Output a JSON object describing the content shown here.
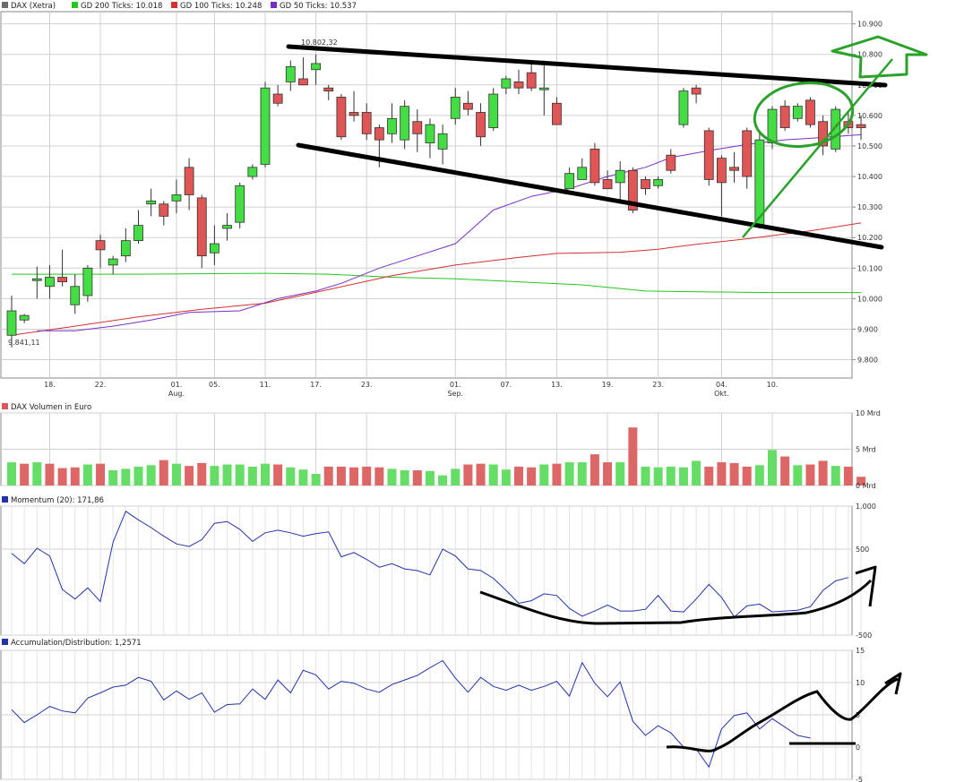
{
  "legend": [
    {
      "label": "DAX (Xetra)",
      "color": "#6b6b6b"
    },
    {
      "label": "GD 200 Ticks: 10.018",
      "color": "#22c722"
    },
    {
      "label": "GD 100 Ticks: 10.248",
      "color": "#d43030"
    },
    {
      "label": "GD 50 Ticks: 10.537",
      "color": "#7a2ec8"
    }
  ],
  "volume_title": "DAX Volumen in Euro",
  "momentum_title": "Momentum (20): 171,86",
  "ad_title": "Accumulation/Distribution: 1,2571",
  "annotations": {
    "high": "10.802,32",
    "low": "9.841,11"
  },
  "colors": {
    "up": "#44dd44",
    "down": "#e05555",
    "grid": "#d0d0d0",
    "sma200": "#22c722",
    "sma100": "#d43030",
    "sma50": "#7a2ec8",
    "indicator": "#2233aa",
    "trend": "#000000",
    "drawing": "#2aa22a"
  },
  "chart_data": [
    {
      "type": "candlestick",
      "ylim": [
        9740,
        10940
      ],
      "yticks": [
        "9.800",
        "9.900",
        "10.000",
        "10.100",
        "10.200",
        "10.300",
        "10.400",
        "10.500",
        "10.600",
        "10.700",
        "10.800",
        "10.900"
      ],
      "xticks": [
        {
          "i": 3,
          "day": "18.",
          "month": ""
        },
        {
          "i": 7,
          "day": "22.",
          "month": ""
        },
        {
          "i": 13,
          "day": "01.",
          "month": "Aug."
        },
        {
          "i": 16,
          "day": "05.",
          "month": ""
        },
        {
          "i": 20,
          "day": "11.",
          "month": ""
        },
        {
          "i": 24,
          "day": "17.",
          "month": ""
        },
        {
          "i": 28,
          "day": "23.",
          "month": ""
        },
        {
          "i": 35,
          "day": "01.",
          "month": "Sep."
        },
        {
          "i": 39,
          "day": "07.",
          "month": ""
        },
        {
          "i": 43,
          "day": "13.",
          "month": ""
        },
        {
          "i": 47,
          "day": "19.",
          "month": ""
        },
        {
          "i": 51,
          "day": "23.",
          "month": ""
        },
        {
          "i": 56,
          "day": "04.",
          "month": "Okt."
        },
        {
          "i": 60,
          "day": "10.",
          "month": ""
        }
      ],
      "candles": [
        [
          9880,
          9960,
          9840,
          10010
        ],
        [
          9930,
          9945,
          9920,
          9950
        ],
        [
          10060,
          10065,
          10000,
          10105
        ],
        [
          10040,
          10070,
          10000,
          10110
        ],
        [
          10070,
          10055,
          10040,
          10160
        ],
        [
          9980,
          10040,
          9950,
          10080
        ],
        [
          10010,
          10100,
          9990,
          10110
        ],
        [
          10190,
          10160,
          10100,
          10210
        ],
        [
          10110,
          10130,
          10080,
          10140
        ],
        [
          10140,
          10190,
          10120,
          10230
        ],
        [
          10190,
          10240,
          10180,
          10290
        ],
        [
          10310,
          10320,
          10270,
          10360
        ],
        [
          10310,
          10270,
          10240,
          10320
        ],
        [
          10320,
          10340,
          10280,
          10390
        ],
        [
          10430,
          10340,
          10290,
          10460
        ],
        [
          10330,
          10140,
          10100,
          10340
        ],
        [
          10150,
          10180,
          10110,
          10240
        ],
        [
          10230,
          10240,
          10190,
          10280
        ],
        [
          10250,
          10370,
          10230,
          10380
        ],
        [
          10400,
          10430,
          10390,
          10440
        ],
        [
          10440,
          10690,
          10430,
          10710
        ],
        [
          10670,
          10640,
          10630,
          10700
        ],
        [
          10710,
          10760,
          10680,
          10780
        ],
        [
          10720,
          10700,
          10700,
          10790
        ],
        [
          10750,
          10770,
          10700,
          10800
        ],
        [
          10690,
          10680,
          10650,
          10700
        ],
        [
          10660,
          10530,
          10520,
          10670
        ],
        [
          10610,
          10600,
          10580,
          10680
        ],
        [
          10610,
          10540,
          10520,
          10640
        ],
        [
          10560,
          10520,
          10430,
          10570
        ],
        [
          10540,
          10590,
          10510,
          10640
        ],
        [
          10520,
          10630,
          10490,
          10650
        ],
        [
          10580,
          10540,
          10480,
          10620
        ],
        [
          10510,
          10570,
          10460,
          10590
        ],
        [
          10490,
          10540,
          10440,
          10570
        ],
        [
          10590,
          10660,
          10570,
          10690
        ],
        [
          10640,
          10620,
          10600,
          10680
        ],
        [
          10610,
          10530,
          10500,
          10640
        ],
        [
          10560,
          10670,
          10550,
          10690
        ],
        [
          10690,
          10720,
          10670,
          10730
        ],
        [
          10710,
          10690,
          10670,
          10750
        ],
        [
          10740,
          10690,
          10680,
          10780
        ],
        [
          10690,
          10690,
          10600,
          10780
        ],
        [
          10640,
          10570,
          10570,
          10660
        ],
        [
          10360,
          10410,
          10360,
          10430
        ],
        [
          10390,
          10430,
          10390,
          10460
        ],
        [
          10490,
          10380,
          10370,
          10510
        ],
        [
          10390,
          10360,
          10360,
          10420
        ],
        [
          10380,
          10420,
          10320,
          10450
        ],
        [
          10420,
          10290,
          10280,
          10430
        ],
        [
          10390,
          10360,
          10340,
          10400
        ],
        [
          10370,
          10390,
          10360,
          10400
        ],
        [
          10470,
          10420,
          10410,
          10490
        ],
        [
          10570,
          10680,
          10560,
          10690
        ],
        [
          10690,
          10670,
          10640,
          10700
        ],
        [
          10550,
          10390,
          10370,
          10560
        ],
        [
          10460,
          10380,
          10270,
          10470
        ],
        [
          10430,
          10420,
          10380,
          10480
        ],
        [
          10550,
          10400,
          10360,
          10560
        ],
        [
          10240,
          10520,
          10230,
          10550
        ],
        [
          10510,
          10620,
          10490,
          10630
        ],
        [
          10630,
          10560,
          10550,
          10650
        ],
        [
          10590,
          10630,
          10580,
          10640
        ],
        [
          10650,
          10570,
          10560,
          10660
        ],
        [
          10580,
          10500,
          10470,
          10600
        ],
        [
          10490,
          10620,
          10480,
          10630
        ],
        [
          10580,
          10560,
          10540,
          10610
        ],
        [
          10570,
          10560,
          10520,
          10600
        ]
      ],
      "gd200": [
        [
          0,
          10080
        ],
        [
          5,
          10080
        ],
        [
          10,
          10080
        ],
        [
          20,
          10083
        ],
        [
          25,
          10080
        ],
        [
          30,
          10070
        ],
        [
          35,
          10065
        ],
        [
          40,
          10055
        ],
        [
          45,
          10045
        ],
        [
          50,
          10025
        ],
        [
          55,
          10022
        ],
        [
          60,
          10020
        ],
        [
          67,
          10020
        ]
      ],
      "gd100": [
        [
          0,
          9880
        ],
        [
          5,
          9910
        ],
        [
          10,
          9940
        ],
        [
          15,
          9965
        ],
        [
          20,
          9985
        ],
        [
          25,
          10030
        ],
        [
          30,
          10075
        ],
        [
          35,
          10110
        ],
        [
          40,
          10135
        ],
        [
          43,
          10148
        ],
        [
          48,
          10152
        ],
        [
          51,
          10162
        ],
        [
          54,
          10178
        ],
        [
          58,
          10196
        ],
        [
          63,
          10222
        ],
        [
          67,
          10248
        ]
      ],
      "gd50": [
        [
          2,
          9895
        ],
        [
          5,
          9895
        ],
        [
          8,
          9910
        ],
        [
          11,
          9930
        ],
        [
          14,
          9955
        ],
        [
          18,
          9960
        ],
        [
          21,
          10000
        ],
        [
          24,
          10025
        ],
        [
          26,
          10050
        ],
        [
          29,
          10100
        ],
        [
          32,
          10140
        ],
        [
          35,
          10180
        ],
        [
          38,
          10290
        ],
        [
          41,
          10335
        ],
        [
          44,
          10360
        ],
        [
          47,
          10400
        ],
        [
          50,
          10430
        ],
        [
          52,
          10462
        ],
        [
          55,
          10485
        ],
        [
          58,
          10505
        ],
        [
          61,
          10520
        ],
        [
          63,
          10525
        ],
        [
          67,
          10537
        ]
      ]
    },
    {
      "type": "bar",
      "title": "DAX Volumen in Euro",
      "ylim": [
        0,
        10
      ],
      "yticks": [
        "10 Mrd",
        "5 Mrd",
        "0 Mrd"
      ],
      "values": [
        3.2,
        3.0,
        3.2,
        3.0,
        2.4,
        2.5,
        2.9,
        3.0,
        2.1,
        2.3,
        2.6,
        2.8,
        3.5,
        3.0,
        2.7,
        3.1,
        2.7,
        2.9,
        2.9,
        2.6,
        3.0,
        2.9,
        2.5,
        2.2,
        1.6,
        2.6,
        2.6,
        2.5,
        2.6,
        2.5,
        2.3,
        2.1,
        2.1,
        2.0,
        1.4,
        2.3,
        2.9,
        3.0,
        2.9,
        2.2,
        2.6,
        2.5,
        2.9,
        3.0,
        3.2,
        3.2,
        4.3,
        3.2,
        3.2,
        8.0,
        2.6,
        2.5,
        2.6,
        2.5,
        3.4,
        2.6,
        3.2,
        3.1,
        2.6,
        2.8,
        4.9,
        4.0,
        2.8,
        2.9,
        3.4,
        2.7,
        2.6,
        1.2
      ],
      "up": [
        1,
        0,
        1,
        0,
        0,
        0,
        1,
        0,
        1,
        1,
        1,
        1,
        0,
        1,
        0,
        0,
        1,
        1,
        1,
        1,
        1,
        0,
        1,
        1,
        1,
        0,
        0,
        0,
        0,
        0,
        1,
        1,
        0,
        1,
        1,
        1,
        0,
        0,
        1,
        1,
        0,
        0,
        1,
        0,
        1,
        1,
        0,
        0,
        1,
        0,
        1,
        1,
        1,
        1,
        1,
        0,
        0,
        0,
        0,
        1,
        1,
        0,
        1,
        0,
        0,
        1,
        0,
        0
      ]
    },
    {
      "type": "line",
      "title": "Momentum (20): 171,86",
      "ylim": [
        -500,
        1000
      ],
      "yticks": [
        "1.000",
        "500",
        "-500"
      ],
      "values": [
        450,
        330,
        510,
        420,
        30,
        -80,
        50,
        -110,
        580,
        940,
        840,
        750,
        650,
        560,
        530,
        610,
        800,
        820,
        730,
        590,
        690,
        720,
        690,
        650,
        680,
        700,
        410,
        460,
        380,
        290,
        330,
        270,
        250,
        200,
        500,
        420,
        270,
        250,
        160,
        20,
        -130,
        -100,
        -20,
        -40,
        -190,
        -280,
        -220,
        -150,
        -220,
        -220,
        -200,
        -40,
        -220,
        -230,
        -80,
        90,
        -60,
        -290,
        -160,
        -140,
        -230,
        -220,
        -210,
        -170,
        20,
        130,
        170
      ]
    },
    {
      "type": "line",
      "title": "Accumulation/Distribution: 1,2571",
      "ylim": [
        -5,
        15
      ],
      "yticks": [
        "15",
        "10",
        "5",
        "0",
        "-5"
      ],
      "values": [
        5.8,
        3.8,
        5.0,
        6.3,
        5.6,
        5.3,
        7.6,
        8.4,
        9.3,
        9.6,
        10.8,
        10.2,
        7.3,
        8.7,
        7.4,
        8.4,
        5.4,
        6.6,
        6.7,
        9.0,
        7.4,
        10.4,
        8.4,
        11.9,
        11.2,
        9.0,
        10.2,
        9.9,
        9.0,
        8.5,
        9.7,
        10.4,
        11.1,
        12.3,
        13.4,
        10.7,
        8.5,
        10.8,
        9.4,
        8.8,
        9.6,
        8.8,
        9.4,
        10.2,
        7.9,
        13.1,
        9.9,
        7.8,
        10.1,
        4.0,
        1.8,
        3.3,
        2.2,
        0.0,
        -0.3,
        -3.1,
        2.8,
        4.9,
        5.3,
        2.8,
        4.4,
        3.1,
        1.8,
        1.4
      ]
    }
  ]
}
